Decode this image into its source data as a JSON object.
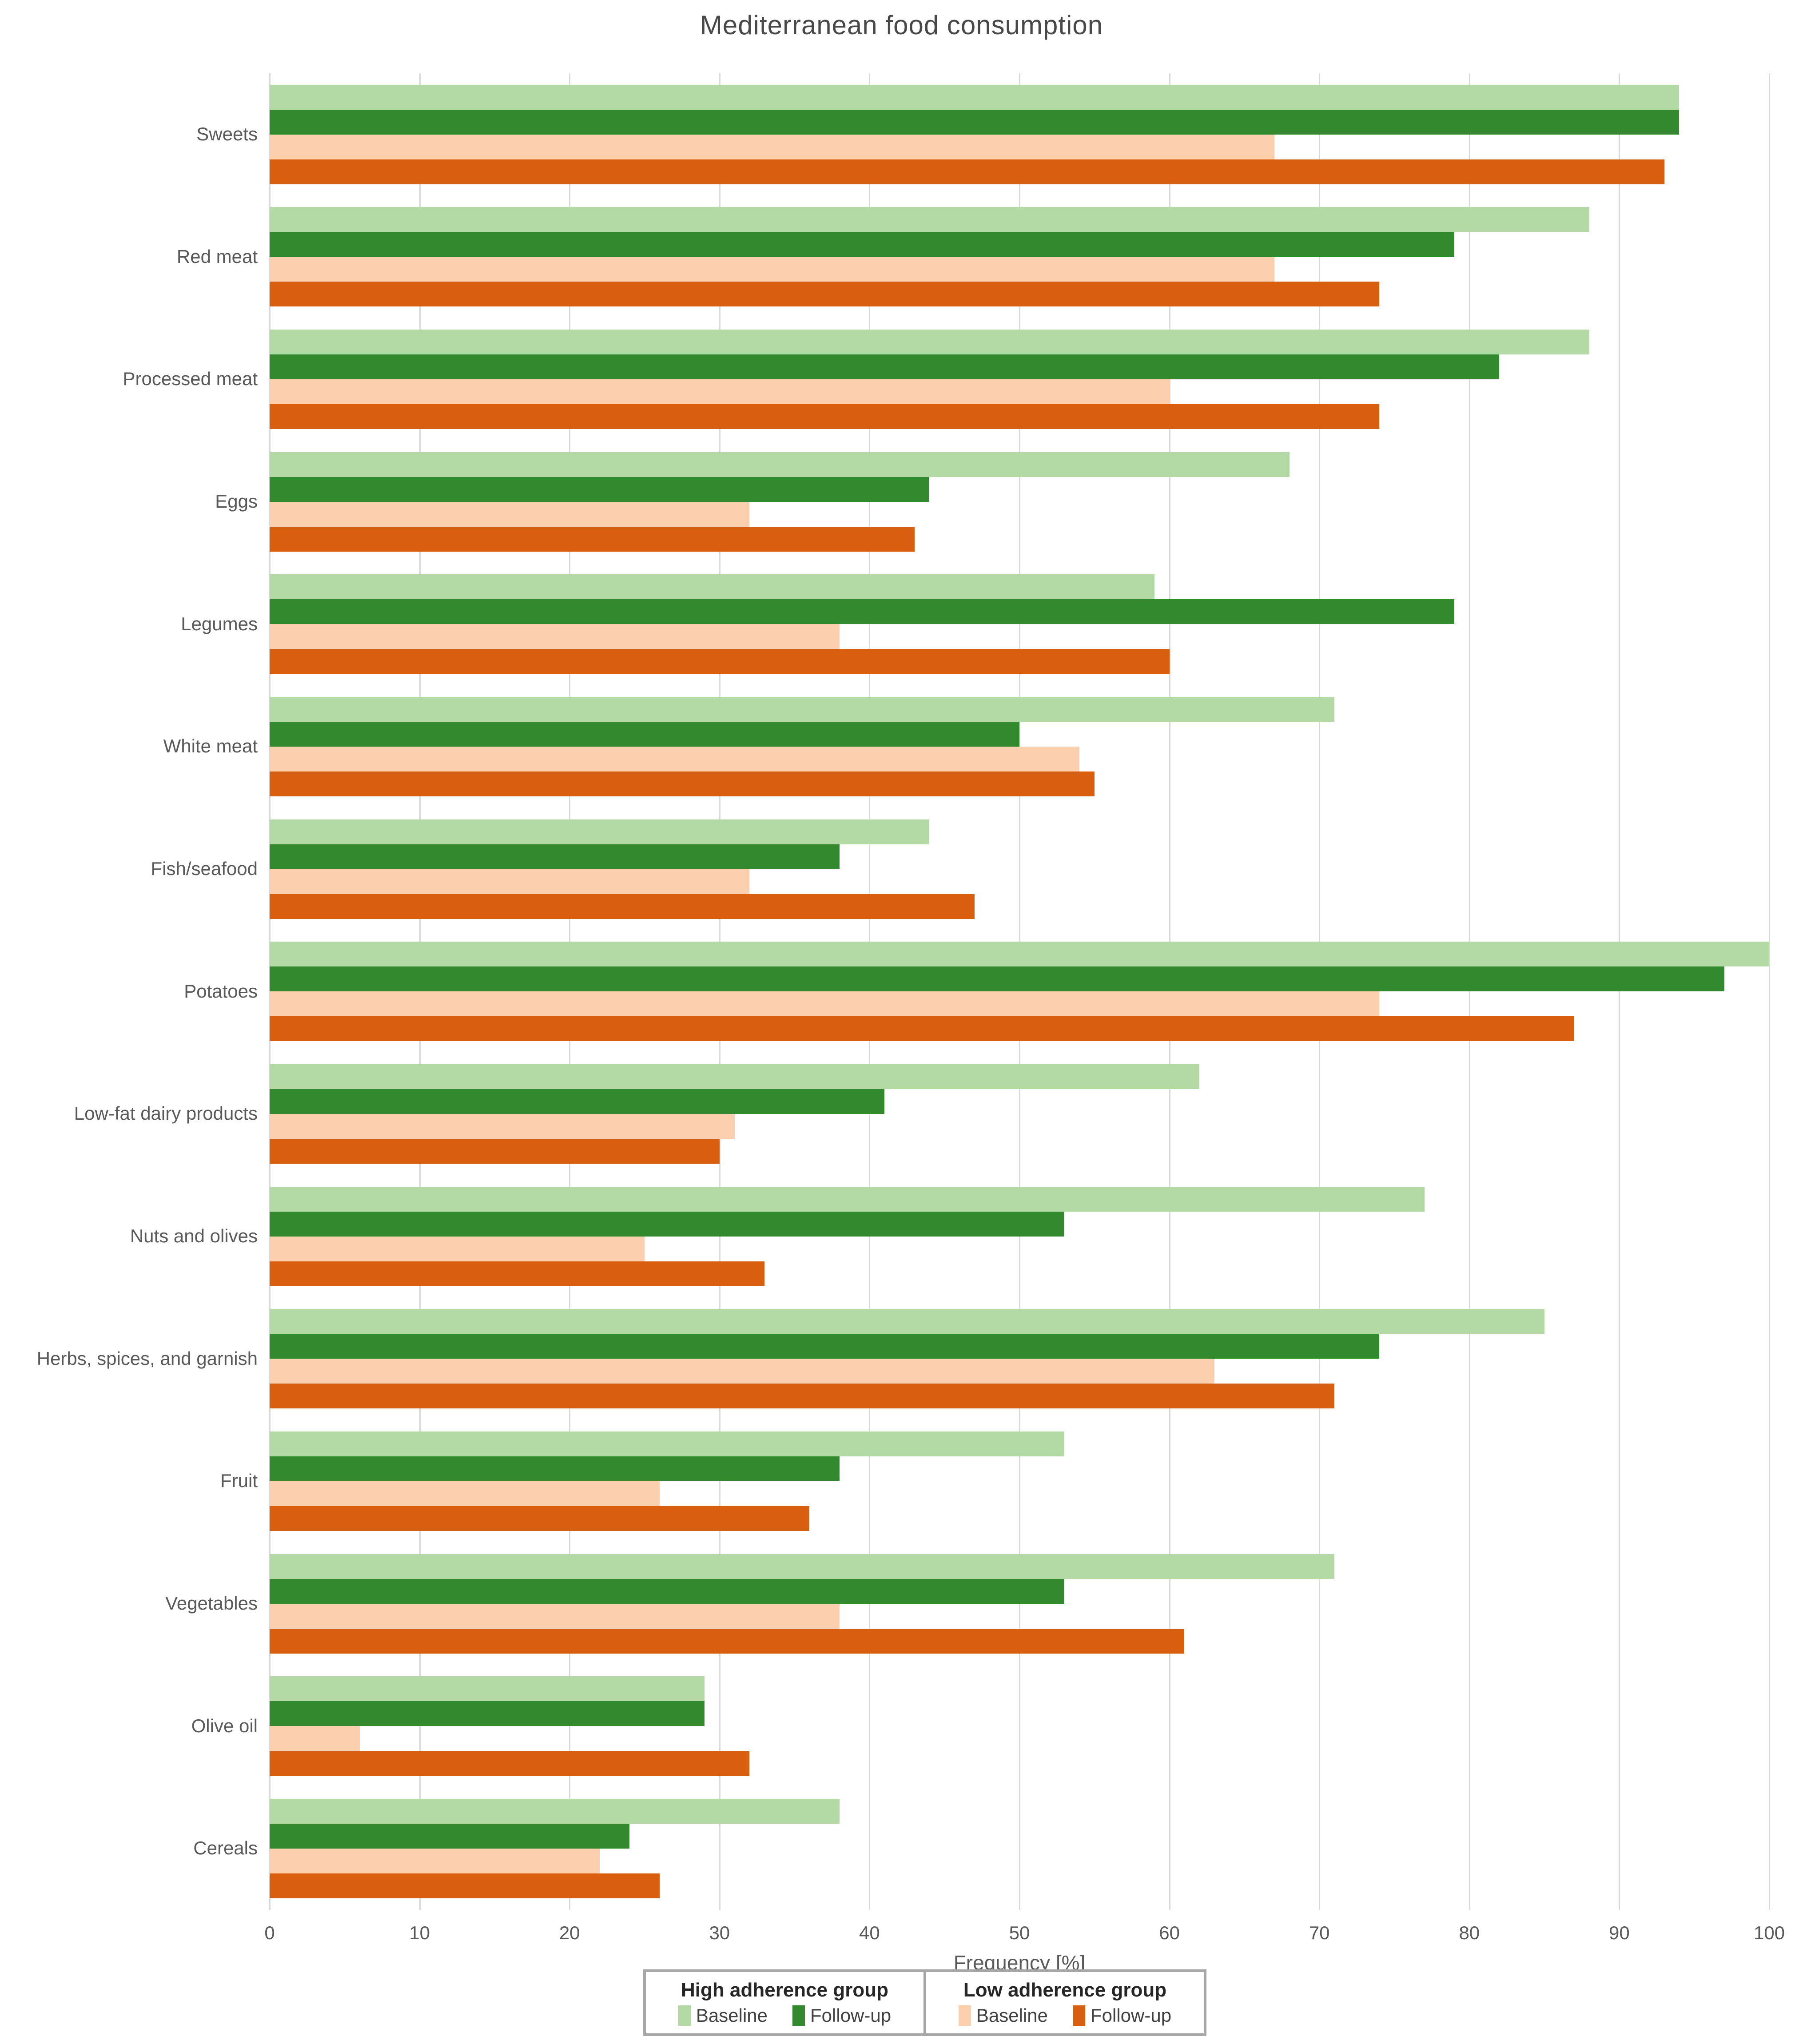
{
  "title": "Mediterranean food consumption",
  "x_axis": {
    "label": "Frequency [%]"
  },
  "legend": {
    "groups": [
      {
        "title": "High adherence group",
        "items": [
          {
            "label": "Baseline",
            "color": "#b3d9a5"
          },
          {
            "label": "Follow-up",
            "color": "#338a2e"
          }
        ]
      },
      {
        "title": "Low adherence group",
        "items": [
          {
            "label": "Baseline",
            "color": "#fccfae"
          },
          {
            "label": "Follow-up",
            "color": "#d85f10"
          }
        ]
      }
    ]
  },
  "chart_data": {
    "type": "bar",
    "orientation": "horizontal",
    "title": "Mediterranean food consumption",
    "xlabel": "Frequency [%]",
    "xlim": [
      0,
      100
    ],
    "ticks": [
      0,
      10,
      20,
      30,
      40,
      50,
      60,
      70,
      80,
      90,
      100
    ],
    "grid": true,
    "legend_position": "bottom",
    "categories": [
      "Sweets",
      "Red meat",
      "Processed meat",
      "Eggs",
      "Legumes",
      "White meat",
      "Fish/seafood",
      "Potatoes",
      "Low-fat dairy products",
      "Nuts and olives",
      "Herbs, spices, and garnish",
      "Fruit",
      "Vegetables",
      "Olive oil",
      "Cereals"
    ],
    "series": [
      {
        "name": "High adherence group - Baseline",
        "color": "#b3d9a5",
        "values": [
          94,
          88,
          88,
          68,
          59,
          71,
          44,
          100,
          62,
          77,
          85,
          53,
          71,
          29,
          38
        ]
      },
      {
        "name": "High adherence group - Follow-up",
        "color": "#338a2e",
        "values": [
          94,
          79,
          82,
          44,
          79,
          50,
          38,
          97,
          41,
          53,
          74,
          38,
          53,
          29,
          24
        ]
      },
      {
        "name": "Low adherence group - Baseline",
        "color": "#fccfae",
        "values": [
          67,
          67,
          60,
          32,
          38,
          54,
          32,
          74,
          31,
          25,
          63,
          26,
          38,
          6,
          22
        ]
      },
      {
        "name": "Low adherence group - Follow-up",
        "color": "#d85f10",
        "values": [
          93,
          74,
          74,
          43,
          60,
          55,
          47,
          87,
          30,
          33,
          71,
          36,
          61,
          32,
          26
        ]
      }
    ]
  }
}
